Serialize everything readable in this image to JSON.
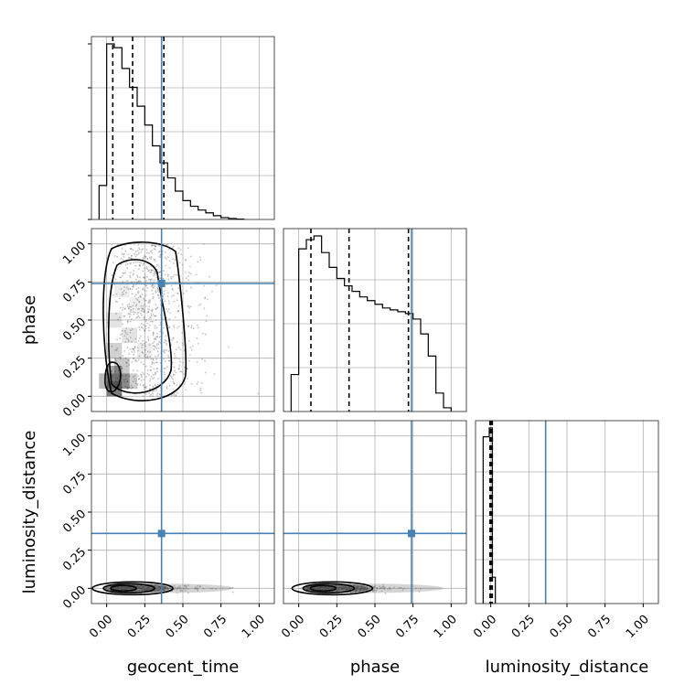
{
  "chart_data": {
    "type": "corner",
    "parameters": [
      "geocent_time",
      "phase",
      "luminosity_distance"
    ],
    "axis_labels": {
      "x": [
        "geocent_time",
        "phase",
        "luminosity_distance"
      ],
      "y": [
        "",
        "phase",
        "luminosity_distance"
      ]
    },
    "range": [
      -0.1,
      1.1
    ],
    "tick_values": [
      0.0,
      0.25,
      0.5,
      0.75,
      1.0
    ],
    "tick_labels": [
      "0.00",
      "0.25",
      "0.50",
      "0.75",
      "1.00"
    ],
    "truths": {
      "geocent_time": 0.36,
      "phase": 0.74,
      "luminosity_distance": 0.36
    },
    "truth_color": "#4682b4",
    "grid": true,
    "histograms": {
      "geocent_time": {
        "bin_edges": [
          -0.05,
          0.0,
          0.05,
          0.1,
          0.15,
          0.2,
          0.25,
          0.3,
          0.35,
          0.4,
          0.45,
          0.5,
          0.55,
          0.6,
          0.65,
          0.7,
          0.75,
          0.8,
          0.85,
          0.9
        ],
        "counts": [
          0.18,
          0.93,
          0.91,
          0.8,
          0.7,
          0.6,
          0.5,
          0.39,
          0.3,
          0.22,
          0.15,
          0.1,
          0.07,
          0.05,
          0.035,
          0.02,
          0.01,
          0.005,
          0.002
        ],
        "quantiles": [
          0.04,
          0.17,
          0.375
        ]
      },
      "phase": {
        "bin_edges": [
          -0.05,
          0.0,
          0.05,
          0.1,
          0.15,
          0.2,
          0.25,
          0.3,
          0.35,
          0.4,
          0.45,
          0.5,
          0.55,
          0.6,
          0.65,
          0.7,
          0.75,
          0.8,
          0.85,
          0.9,
          0.95,
          1.0
        ],
        "counts": [
          0.2,
          0.88,
          0.93,
          0.95,
          0.86,
          0.78,
          0.72,
          0.68,
          0.65,
          0.62,
          0.6,
          0.58,
          0.56,
          0.55,
          0.54,
          0.53,
          0.5,
          0.42,
          0.3,
          0.1,
          0.02
        ],
        "quantiles": [
          0.08,
          0.33,
          0.72
        ]
      },
      "luminosity_distance": {
        "bin_edges": [
          -0.05,
          -0.01,
          0.01,
          0.03
        ],
        "counts": [
          0.95,
          1.0,
          0.15
        ],
        "quantiles": [
          -0.005,
          0.0,
          0.01
        ]
      }
    },
    "density_panels": [
      {
        "x": "geocent_time",
        "y": "phase",
        "core": [
          0.05,
          0.1
        ],
        "spread": "wide"
      },
      {
        "x": "geocent_time",
        "y": "luminosity_distance",
        "core": [
          0.05,
          0.0
        ],
        "spread": "flat"
      },
      {
        "x": "phase",
        "y": "luminosity_distance",
        "core": [
          0.1,
          0.0
        ],
        "spread": "flat"
      }
    ]
  }
}
